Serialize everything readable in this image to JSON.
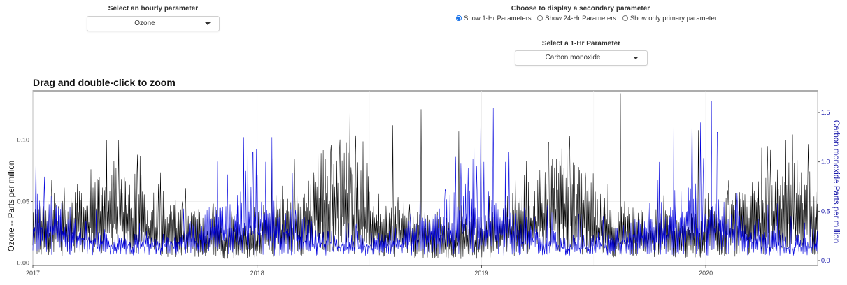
{
  "controls": {
    "hourly_label": "Select an hourly parameter",
    "hourly_value": "Ozone",
    "secondary_label": "Choose to display a secondary parameter",
    "radio_options": [
      "Show 1-Hr Parameters",
      "Show 24-Hr Parameters",
      "Show only primary parameter"
    ],
    "radio_selected": 0,
    "onehr_label": "Select a 1-Hr Parameter",
    "onehr_value": "Carbon monoxide"
  },
  "chart_data": {
    "type": "line",
    "title": "Drag and double-click to zoom",
    "xlabel": "",
    "x_ticks": [
      "2017",
      "2018",
      "2019",
      "2020"
    ],
    "xlim": [
      "2017-01-01",
      "2020-07-01"
    ],
    "y_left": {
      "label": "Ozone  --  Parts per million",
      "ticks": [
        "0.00",
        "0.05",
        "0.10"
      ],
      "lim": [
        -0.002,
        0.14
      ]
    },
    "y_right": {
      "label": "Carbon monoxide Parts per million",
      "ticks": [
        "0.0",
        "0.5",
        "1.0",
        "1.5"
      ],
      "lim": [
        -0.05,
        1.72
      ]
    },
    "grid": true,
    "series": [
      {
        "name": "Ozone",
        "axis": "left",
        "color": "#000000",
        "monthly_baseline": [
          0.03,
          0.035,
          0.04,
          0.045,
          0.05,
          0.045,
          0.035,
          0.03,
          0.028,
          0.025,
          0.022,
          0.022,
          0.028,
          0.032,
          0.04,
          0.055,
          0.06,
          0.048,
          0.035,
          0.03,
          0.028,
          0.025,
          0.022,
          0.022,
          0.028,
          0.034,
          0.042,
          0.05,
          0.055,
          0.045,
          0.035,
          0.03,
          0.028,
          0.026,
          0.024,
          0.024,
          0.028,
          0.034,
          0.04,
          0.048,
          0.05,
          0.045
        ],
        "peaks": [
          [
            "2017-05-01",
            0.1
          ],
          [
            "2017-06-20",
            0.088
          ],
          [
            "2018-01-25",
            0.085
          ],
          [
            "2018-05-15",
            0.09
          ],
          [
            "2018-08-10",
            0.112
          ],
          [
            "2018-09-25",
            0.125
          ],
          [
            "2018-11-25",
            0.107
          ],
          [
            "2019-04-20",
            0.098
          ],
          [
            "2019-08-15",
            0.138
          ],
          [
            "2019-12-20",
            0.108
          ],
          [
            "2020-04-10",
            0.095
          ],
          [
            "2020-05-10",
            0.1
          ]
        ]
      },
      {
        "name": "Carbon monoxide",
        "axis": "right",
        "color": "#0000dd",
        "monthly_baseline": [
          0.45,
          0.4,
          0.3,
          0.22,
          0.18,
          0.18,
          0.2,
          0.22,
          0.28,
          0.38,
          0.45,
          0.5,
          0.42,
          0.38,
          0.3,
          0.22,
          0.18,
          0.18,
          0.2,
          0.24,
          0.3,
          0.38,
          0.48,
          0.52,
          0.45,
          0.38,
          0.3,
          0.22,
          0.18,
          0.18,
          0.2,
          0.24,
          0.32,
          0.4,
          0.48,
          0.55,
          0.45,
          0.38,
          0.28,
          0.22,
          0.18,
          0.18
        ],
        "peaks": [
          [
            "2017-01-20",
            0.85
          ],
          [
            "2017-12-10",
            1.25
          ],
          [
            "2017-12-25",
            1.1
          ],
          [
            "2018-01-15",
            1.0
          ],
          [
            "2018-01-25",
            1.25
          ],
          [
            "2018-11-20",
            1.05
          ],
          [
            "2018-12-20",
            1.35
          ],
          [
            "2019-01-05",
            1.0
          ],
          [
            "2019-01-20",
            1.55
          ],
          [
            "2019-02-15",
            1.1
          ],
          [
            "2019-11-10",
            1.4
          ],
          [
            "2019-12-10",
            1.55
          ],
          [
            "2020-01-10",
            1.62
          ],
          [
            "2020-01-20",
            1.3
          ]
        ]
      }
    ]
  }
}
